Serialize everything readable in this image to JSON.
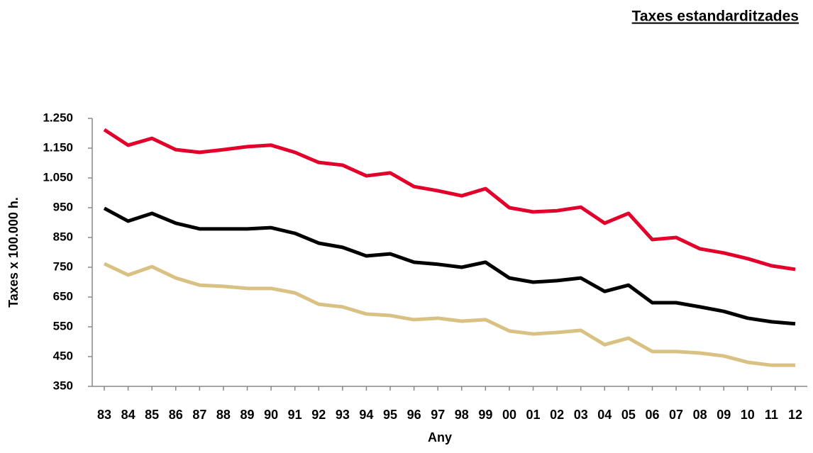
{
  "chart_data": {
    "type": "line",
    "title": "Taxes estandarditzades",
    "x_label": "Any",
    "y_label": "Taxes x 100.000 h.",
    "categories": [
      "83",
      "84",
      "85",
      "86",
      "87",
      "88",
      "89",
      "90",
      "91",
      "92",
      "93",
      "94",
      "95",
      "96",
      "97",
      "98",
      "99",
      "00",
      "01",
      "02",
      "03",
      "04",
      "05",
      "06",
      "07",
      "08",
      "09",
      "10",
      "11",
      "12"
    ],
    "series": [
      {
        "color": "#e3002b",
        "values": [
          1212,
          1160,
          1183,
          1145,
          1136,
          1145,
          1155,
          1160,
          1136,
          1102,
          1093,
          1057,
          1067,
          1021,
          1007,
          990,
          1014,
          950,
          936,
          940,
          952,
          898,
          931,
          843,
          850,
          812,
          798,
          779,
          755,
          743
        ]
      },
      {
        "color": "#000000",
        "values": [
          948,
          905,
          931,
          898,
          879,
          879,
          879,
          883,
          864,
          831,
          817,
          788,
          795,
          767,
          760,
          750,
          767,
          714,
          700,
          705,
          714,
          669,
          690,
          631,
          631,
          617,
          602,
          579,
          567,
          560
        ]
      },
      {
        "color": "#d8c182",
        "values": [
          762,
          724,
          752,
          714,
          690,
          686,
          679,
          679,
          664,
          626,
          617,
          593,
          588,
          574,
          579,
          569,
          574,
          536,
          526,
          531,
          538,
          490,
          512,
          467,
          467,
          462,
          452,
          431,
          421,
          421
        ]
      }
    ],
    "ylim": [
      350,
      1250
    ],
    "yticks": [
      350,
      450,
      550,
      650,
      750,
      850,
      950,
      {
        "value": 1050,
        "label": "1.050"
      },
      {
        "value": 1150,
        "label": "1.150"
      },
      {
        "value": 1250,
        "label": "1.250"
      }
    ],
    "grid": false
  }
}
